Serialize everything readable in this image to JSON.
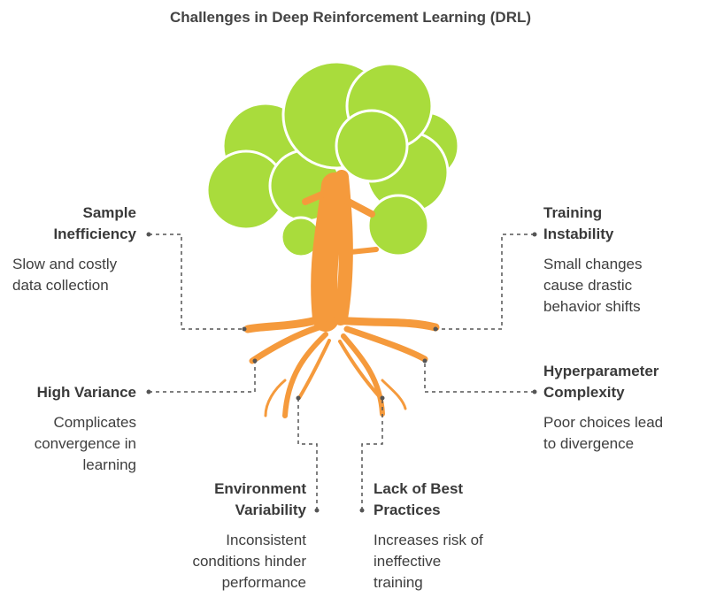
{
  "title": "Challenges in Deep Reinforcement Learning (DRL)",
  "colors": {
    "foliage": "#a9dc3c",
    "trunk": "#f59a3c",
    "connector": "#555555"
  },
  "items": [
    {
      "id": "sample-inefficiency",
      "heading": "Sample\nInefficiency",
      "description": "Slow and costly\ndata collection"
    },
    {
      "id": "training-instability",
      "heading": "Training\nInstability",
      "description": "Small changes\ncause drastic\nbehavior shifts"
    },
    {
      "id": "high-variance",
      "heading": "High Variance",
      "description": "Complicates\nconvergence in\nlearning"
    },
    {
      "id": "hyperparameter-complexity",
      "heading": "Hyperparameter\nComplexity",
      "description": "Poor choices lead\nto divergence"
    },
    {
      "id": "environment-variability",
      "heading": "Environment\nVariability",
      "description": "Inconsistent\nconditions hinder\nperformance"
    },
    {
      "id": "lack-of-best-practices",
      "heading": "Lack of Best\nPractices",
      "description": "Increases risk of\nineffective\ntraining"
    }
  ]
}
